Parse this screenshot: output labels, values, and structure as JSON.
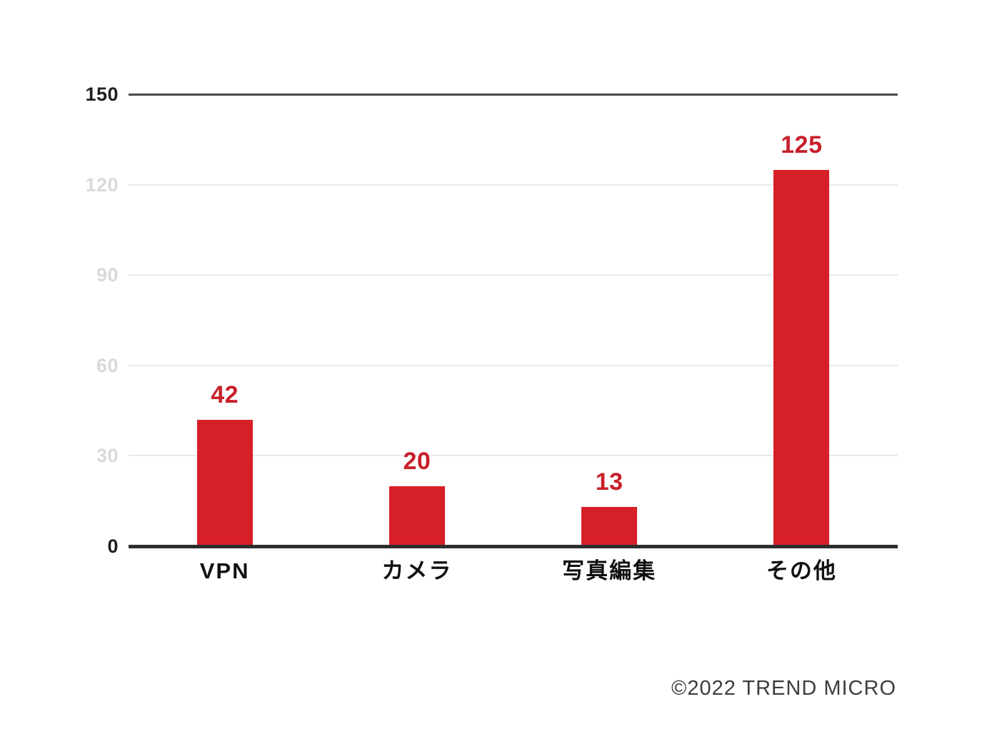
{
  "chart_data": {
    "type": "bar",
    "categories": [
      "VPN",
      "カメラ",
      "写真編集",
      "その他"
    ],
    "values": [
      42,
      20,
      13,
      125
    ],
    "title": "",
    "xlabel": "",
    "ylabel": "",
    "ylim": [
      0,
      150
    ],
    "yticks": [
      0,
      30,
      60,
      90,
      120,
      150
    ],
    "emphasized_ticks": [
      0,
      150
    ],
    "grid": true,
    "legend": "none",
    "bar_color": "#d71f27",
    "value_label_color": "#c8202a",
    "axis_color": "#2d2d2d",
    "gridline_color": "#e9e9e9",
    "dim_tick_color": "#d9d9d9",
    "dark_tick_color": "#1f1f1f"
  },
  "footer": {
    "copyright": "©2022 TREND MICRO"
  }
}
